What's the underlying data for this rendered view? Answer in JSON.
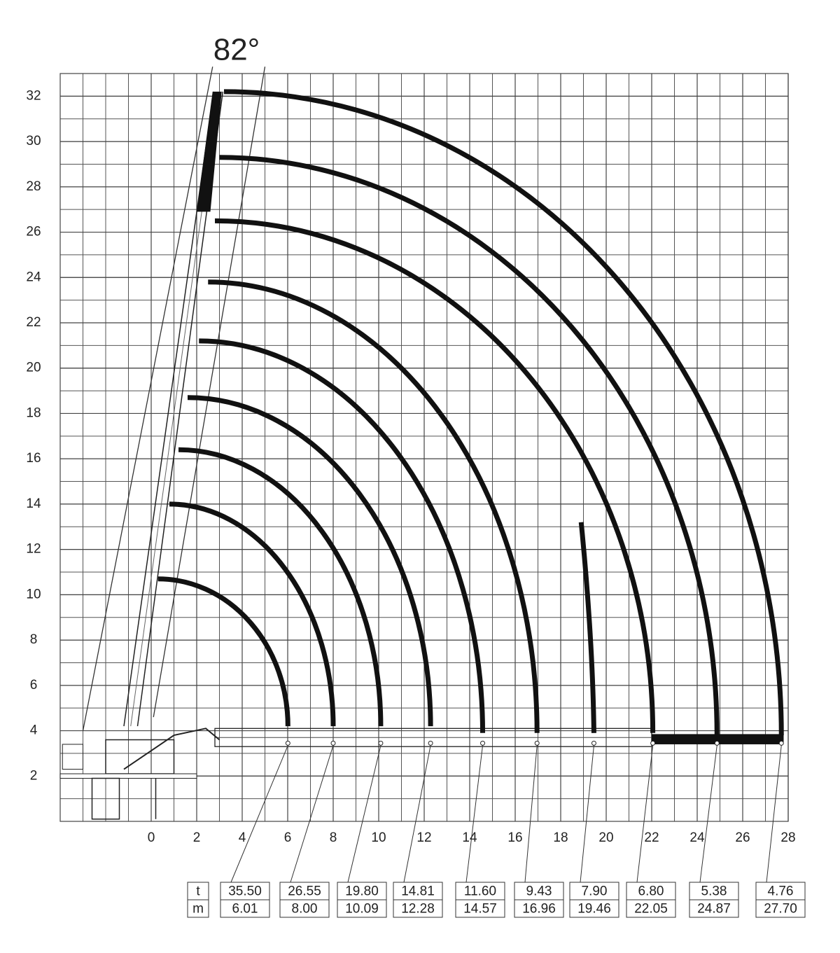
{
  "chart_data": {
    "type": "load-chart",
    "title": "82°",
    "xlim": [
      -4,
      28
    ],
    "ylim": [
      0,
      33
    ],
    "grid_step": 1,
    "xticks": [
      0,
      2,
      4,
      6,
      8,
      10,
      12,
      14,
      16,
      18,
      20,
      22,
      24,
      26,
      28
    ],
    "yticks": [
      2,
      4,
      6,
      8,
      10,
      12,
      14,
      16,
      18,
      20,
      22,
      24,
      26,
      28,
      30,
      32
    ],
    "arcs": [
      {
        "tip": [
          0.3,
          10.7
        ],
        "end": [
          6.01,
          4.2
        ]
      },
      {
        "tip": [
          0.8,
          14.0
        ],
        "end": [
          8.0,
          4.2
        ]
      },
      {
        "tip": [
          1.2,
          16.4
        ],
        "end": [
          10.09,
          4.2
        ]
      },
      {
        "tip": [
          1.6,
          18.7
        ],
        "end": [
          12.28,
          4.2
        ]
      },
      {
        "tip": [
          2.1,
          21.2
        ],
        "end": [
          14.57,
          3.9
        ]
      },
      {
        "tip": [
          2.5,
          23.8
        ],
        "end": [
          16.96,
          3.9
        ]
      },
      {
        "tip": [
          2.8,
          26.5
        ],
        "end": [
          22.05,
          3.9
        ]
      },
      {
        "tip": [
          3.0,
          29.3
        ],
        "end": [
          24.87,
          3.8
        ]
      },
      {
        "tip": [
          3.2,
          32.2
        ],
        "end": [
          27.7,
          3.8
        ]
      }
    ],
    "branch": {
      "start": [
        18.9,
        13.2
      ],
      "end": [
        19.46,
        3.9
      ]
    },
    "load_table": {
      "row_labels": [
        "t",
        "m"
      ],
      "loads": [
        "35.50",
        "26.55",
        "19.80",
        "14.81",
        "11.60",
        "9.43",
        "7.90",
        "6.80",
        "5.38",
        "4.76"
      ],
      "radii": [
        "6.01",
        "8.00",
        "10.09",
        "12.28",
        "14.57",
        "16.96",
        "19.46",
        "22.05",
        "24.87",
        "27.70"
      ],
      "radius_values": [
        6.01,
        8.0,
        10.09,
        12.28,
        14.57,
        16.96,
        19.46,
        22.05,
        24.87,
        27.7
      ]
    }
  }
}
